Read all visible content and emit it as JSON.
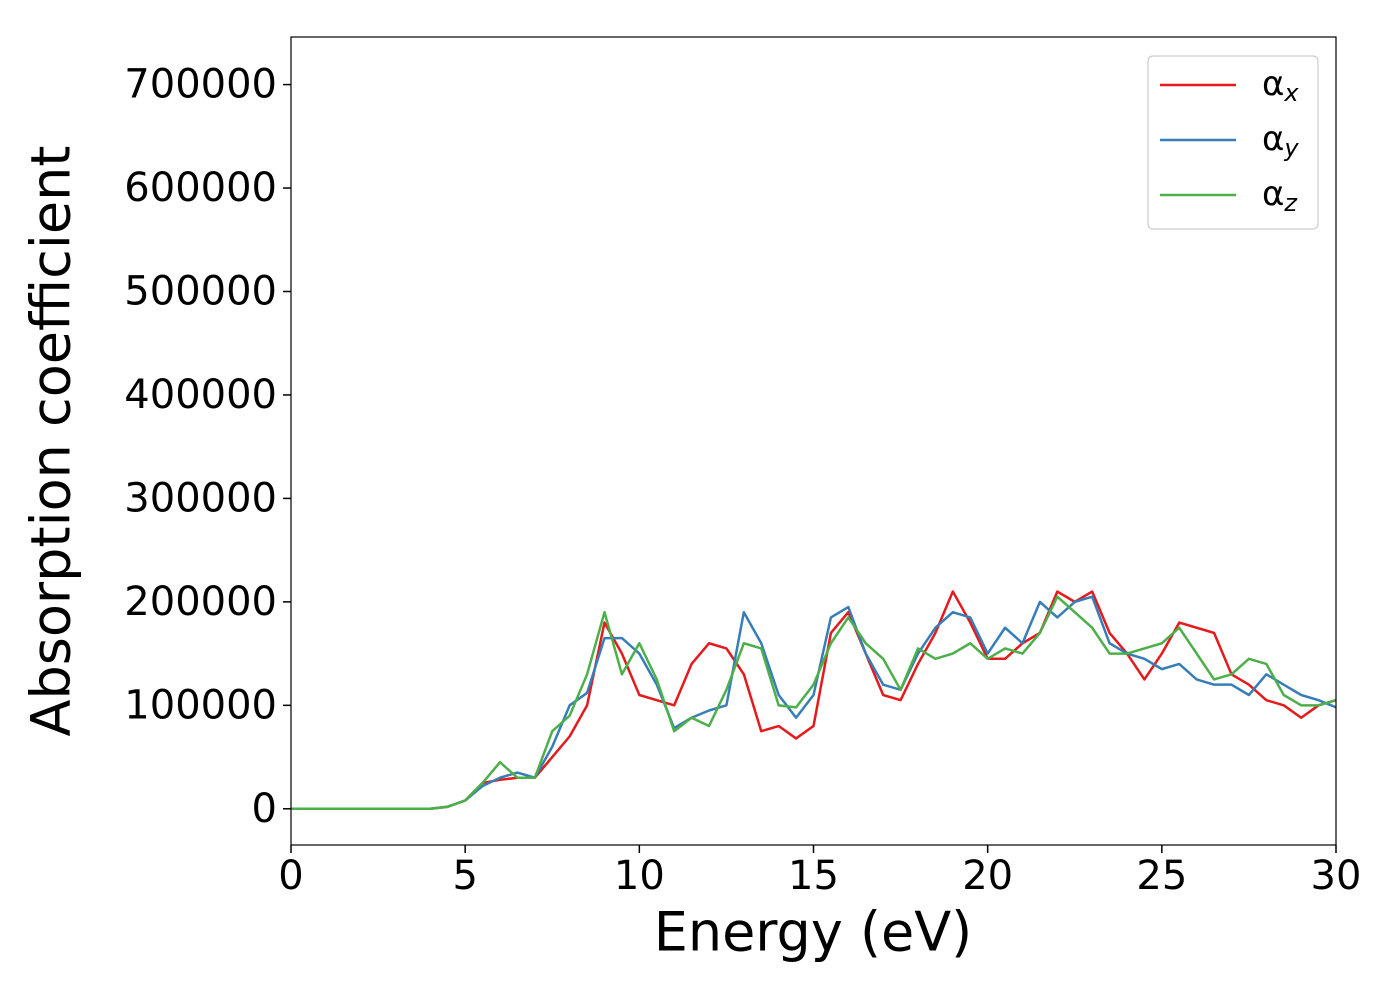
{
  "chart_data": {
    "type": "line",
    "xlabel": "Energy (eV)",
    "ylabel": "Absorption coefficient",
    "x": [
      0,
      0.5,
      1,
      1.5,
      2,
      2.5,
      3,
      3.5,
      4,
      4.5,
      5,
      5.5,
      6,
      6.5,
      7,
      7.5,
      8,
      8.5,
      9,
      9.5,
      10,
      10.5,
      11,
      11.5,
      12,
      12.5,
      13,
      13.5,
      14,
      14.5,
      15,
      15.5,
      16,
      16.5,
      17,
      17.5,
      18,
      18.5,
      19,
      19.5,
      20,
      20.5,
      21,
      21.5,
      22,
      22.5,
      23,
      23.5,
      24,
      24.5,
      25,
      25.5,
      26,
      26.5,
      27,
      27.5,
      28,
      28.5,
      29,
      29.5,
      30
    ],
    "series": [
      {
        "name": "αx",
        "color": "#e41a1c",
        "values": [
          0,
          0,
          0,
          0,
          0,
          0,
          0,
          0,
          0,
          2000,
          8000,
          25000,
          28000,
          30000,
          30000,
          50000,
          70000,
          100000,
          180000,
          150000,
          110000,
          105000,
          100000,
          140000,
          160000,
          155000,
          130000,
          75000,
          80000,
          68000,
          80000,
          170000,
          190000,
          150000,
          110000,
          105000,
          140000,
          170000,
          210000,
          180000,
          145000,
          145000,
          160000,
          170000,
          210000,
          200000,
          210000,
          170000,
          150000,
          125000,
          150000,
          180000,
          175000,
          170000,
          130000,
          120000,
          105000,
          100000,
          88000,
          100000,
          105000
        ]
      },
      {
        "name": "αy",
        "color": "#377eb8",
        "values": [
          0,
          0,
          0,
          0,
          0,
          0,
          0,
          0,
          0,
          2000,
          8000,
          22000,
          30000,
          35000,
          30000,
          60000,
          100000,
          112000,
          165000,
          165000,
          150000,
          120000,
          78000,
          88000,
          95000,
          100000,
          190000,
          160000,
          110000,
          88000,
          110000,
          185000,
          195000,
          150000,
          120000,
          115000,
          150000,
          175000,
          190000,
          185000,
          150000,
          175000,
          160000,
          200000,
          185000,
          200000,
          205000,
          160000,
          150000,
          145000,
          135000,
          140000,
          125000,
          120000,
          120000,
          110000,
          130000,
          120000,
          110000,
          105000,
          98000
        ]
      },
      {
        "name": "αz",
        "color": "#4daf4a",
        "values": [
          0,
          0,
          0,
          0,
          0,
          0,
          0,
          0,
          0,
          2000,
          8000,
          25000,
          45000,
          30000,
          30000,
          75000,
          90000,
          130000,
          190000,
          130000,
          160000,
          125000,
          75000,
          88000,
          80000,
          115000,
          160000,
          155000,
          100000,
          98000,
          120000,
          160000,
          185000,
          160000,
          145000,
          115000,
          155000,
          145000,
          150000,
          160000,
          145000,
          155000,
          150000,
          170000,
          205000,
          190000,
          175000,
          150000,
          150000,
          155000,
          160000,
          175000,
          150000,
          125000,
          130000,
          145000,
          140000,
          110000,
          100000,
          100000,
          105000
        ]
      }
    ],
    "xlim": [
      0,
      30
    ],
    "xticks": [
      0,
      5,
      10,
      15,
      20,
      25,
      30
    ],
    "ylim": [
      -35000,
      746000
    ],
    "yticks": [
      0,
      100000,
      200000,
      300000,
      400000,
      500000,
      600000,
      700000
    ],
    "grid": false,
    "legend": "upper right"
  }
}
